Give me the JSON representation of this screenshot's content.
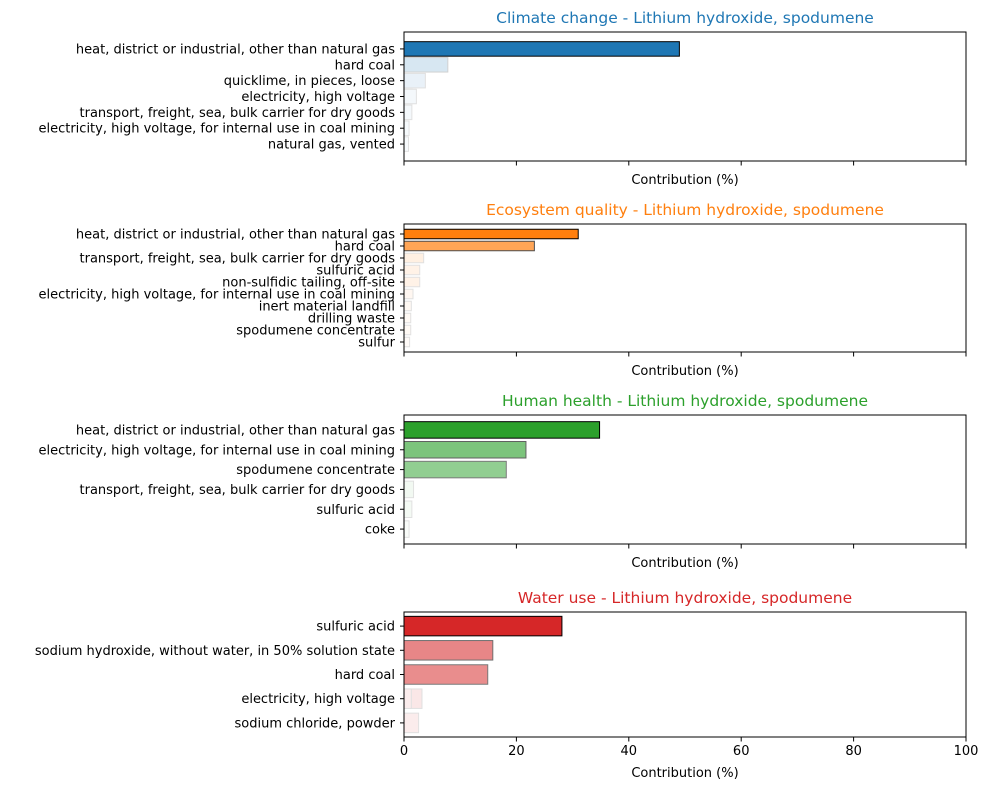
{
  "chart_data": [
    {
      "type": "bar",
      "orientation": "horizontal",
      "title": "Climate change - Lithium hydroxide, spodumene",
      "title_color": "#1f77b4",
      "xlabel": "Contribution (%)",
      "ylabel": "",
      "xlim": [
        0,
        100
      ],
      "x_ticks": [
        0,
        20,
        40,
        60,
        80,
        100
      ],
      "show_x_tick_labels": false,
      "grid": false,
      "base_color": "#1f77b4",
      "categories": [
        "heat, district or industrial, other than natural gas",
        "hard coal",
        "quicklime, in pieces, loose",
        "electricity, high voltage",
        "transport, freight, sea, bulk carrier for dry goods",
        "electricity, high voltage, for internal use in coal mining",
        "natural gas, vented"
      ],
      "values": [
        49,
        7.8,
        3.8,
        1.5,
        1.4,
        0.9,
        0.8
      ],
      "overlay_values": [
        null,
        null,
        null,
        2.2,
        null,
        null,
        null
      ],
      "fill_alpha": [
        1.0,
        0.18,
        0.1,
        0.06,
        0.05,
        0.04,
        0.03
      ]
    },
    {
      "type": "bar",
      "orientation": "horizontal",
      "title": "Ecosystem quality - Lithium hydroxide, spodumene",
      "title_color": "#ff7f0e",
      "xlabel": "Contribution (%)",
      "ylabel": "",
      "xlim": [
        0,
        100
      ],
      "x_ticks": [
        0,
        20,
        40,
        60,
        80,
        100
      ],
      "show_x_tick_labels": false,
      "grid": false,
      "base_color": "#ff7f0e",
      "categories": [
        "heat, district or industrial, other than natural gas",
        "hard coal",
        "transport, freight, sea, bulk carrier for dry goods",
        "sulfuric acid",
        "non-sulfidic tailing, off-site",
        "electricity, high voltage, for internal use in coal mining",
        "inert material landfill",
        "drilling waste",
        "spodumene concentrate",
        "sulfur"
      ],
      "values": [
        31,
        23.2,
        3.5,
        2.8,
        2.8,
        1.6,
        1.3,
        1.2,
        1.2,
        1.0
      ],
      "overlay_values": [
        null,
        null,
        null,
        null,
        null,
        null,
        null,
        null,
        null,
        null
      ],
      "fill_alpha": [
        1.0,
        0.7,
        0.12,
        0.1,
        0.1,
        0.06,
        0.05,
        0.04,
        0.04,
        0.03
      ]
    },
    {
      "type": "bar",
      "orientation": "horizontal",
      "title": "Human health - Lithium hydroxide, spodumene",
      "title_color": "#2ca02c",
      "xlabel": "Contribution (%)",
      "ylabel": "",
      "xlim": [
        0,
        100
      ],
      "x_ticks": [
        0,
        20,
        40,
        60,
        80,
        100
      ],
      "show_x_tick_labels": false,
      "grid": false,
      "base_color": "#2ca02c",
      "categories": [
        "heat, district or industrial, other than natural gas",
        "electricity, high voltage, for internal use in coal mining",
        "spodumene concentrate",
        "transport, freight, sea, bulk carrier for dry goods",
        "sulfuric acid",
        "coke"
      ],
      "values": [
        34.8,
        21.7,
        18.2,
        1.7,
        1.4,
        0.9
      ],
      "overlay_values": [
        null,
        null,
        null,
        null,
        null,
        null
      ],
      "fill_alpha": [
        1.0,
        0.62,
        0.52,
        0.06,
        0.05,
        0.03
      ]
    },
    {
      "type": "bar",
      "orientation": "horizontal",
      "title": "Water use - Lithium hydroxide, spodumene",
      "title_color": "#d62728",
      "xlabel": "Contribution (%)",
      "ylabel": "",
      "xlim": [
        0,
        100
      ],
      "x_ticks": [
        0,
        20,
        40,
        60,
        80,
        100
      ],
      "show_x_tick_labels": true,
      "grid": false,
      "base_color": "#d62728",
      "categories": [
        "sulfuric acid",
        "sodium hydroxide, without water, in 50% solution state",
        "hard coal",
        "electricity, high voltage",
        "sodium chloride, powder"
      ],
      "values": [
        28.1,
        15.8,
        14.9,
        3.2,
        2.6
      ],
      "overlay_values": [
        null,
        null,
        null,
        1.3,
        null
      ],
      "fill_alpha": [
        1.0,
        0.56,
        0.53,
        0.11,
        0.09
      ]
    }
  ]
}
